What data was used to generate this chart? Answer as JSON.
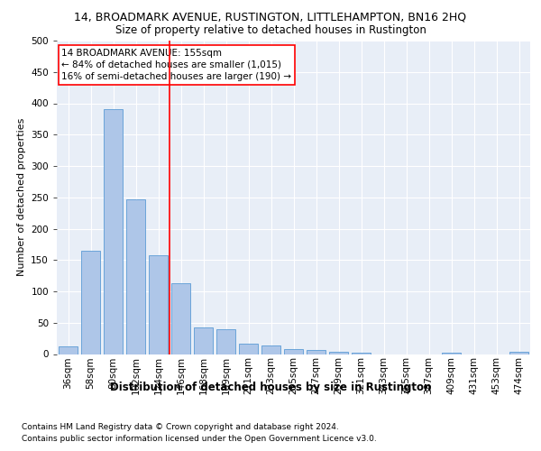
{
  "title": "14, BROADMARK AVENUE, RUSTINGTON, LITTLEHAMPTON, BN16 2HQ",
  "subtitle": "Size of property relative to detached houses in Rustington",
  "xlabel": "Distribution of detached houses by size in Rustington",
  "ylabel": "Number of detached properties",
  "categories": [
    "36sqm",
    "58sqm",
    "80sqm",
    "102sqm",
    "124sqm",
    "146sqm",
    "168sqm",
    "189sqm",
    "211sqm",
    "233sqm",
    "255sqm",
    "277sqm",
    "299sqm",
    "321sqm",
    "343sqm",
    "365sqm",
    "387sqm",
    "409sqm",
    "431sqm",
    "453sqm",
    "474sqm"
  ],
  "values": [
    12,
    165,
    390,
    247,
    157,
    113,
    42,
    40,
    17,
    14,
    8,
    6,
    4,
    2,
    0,
    0,
    0,
    2,
    0,
    0,
    4
  ],
  "bar_color": "#aec6e8",
  "bar_edge_color": "#5b9bd5",
  "annotation_line1": "14 BROADMARK AVENUE: 155sqm",
  "annotation_line2": "← 84% of detached houses are smaller (1,015)",
  "annotation_line3": "16% of semi-detached houses are larger (190) →",
  "annotation_box_color": "white",
  "annotation_box_edge_color": "red",
  "vline_color": "red",
  "vline_x_index": 4.5,
  "ylim": [
    0,
    500
  ],
  "yticks": [
    0,
    50,
    100,
    150,
    200,
    250,
    300,
    350,
    400,
    450,
    500
  ],
  "footnote1": "Contains HM Land Registry data © Crown copyright and database right 2024.",
  "footnote2": "Contains public sector information licensed under the Open Government Licence v3.0.",
  "bg_color": "#e8eef7",
  "fig_bg_color": "#ffffff",
  "title_fontsize": 9,
  "subtitle_fontsize": 8.5,
  "xlabel_fontsize": 8.5,
  "ylabel_fontsize": 8,
  "tick_fontsize": 7.5,
  "annotation_fontsize": 7.5,
  "footnote_fontsize": 6.5
}
